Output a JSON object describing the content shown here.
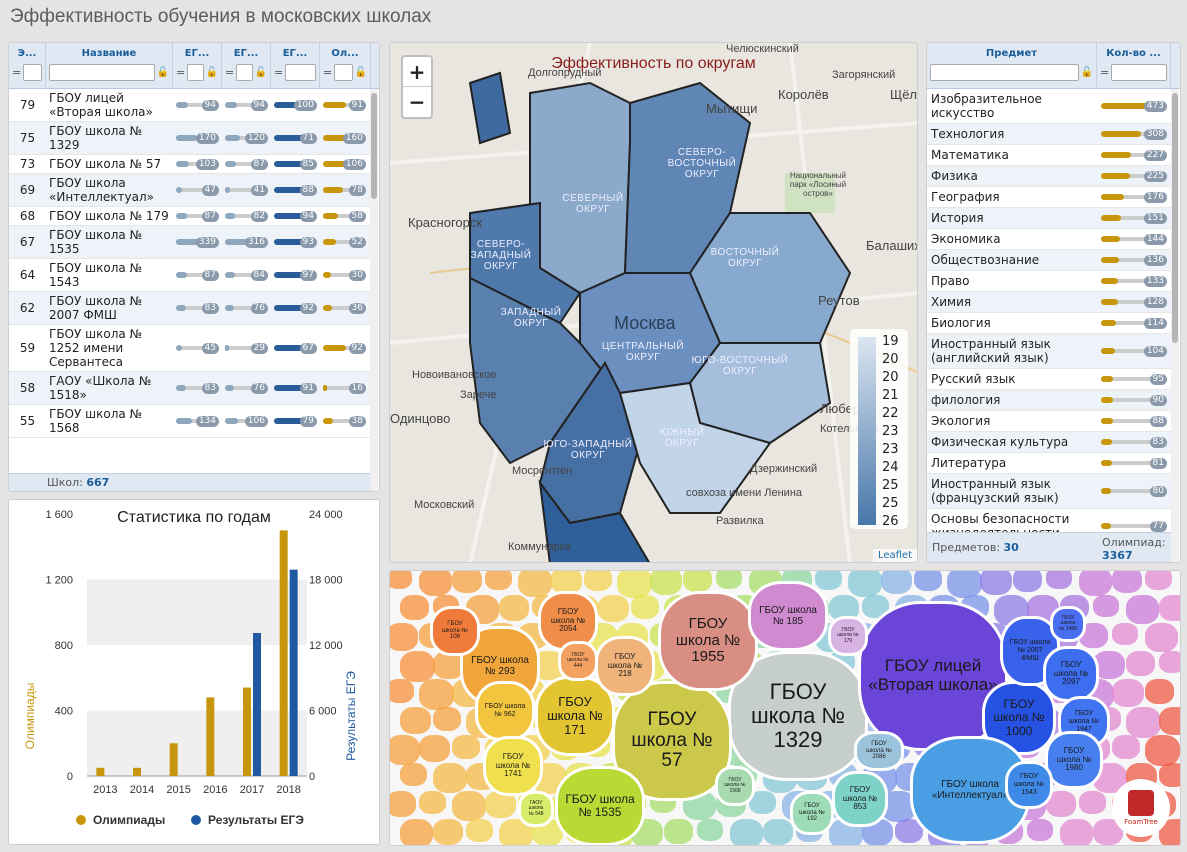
{
  "page": {
    "title": "Эффективность обучения в московских школах"
  },
  "schools": {
    "columns": [
      {
        "label": "Э...",
        "op": "="
      },
      {
        "label": "Название",
        "op": ""
      },
      {
        "label": "ЕГ...",
        "op": "="
      },
      {
        "label": "ЕГ...",
        "op": "="
      },
      {
        "label": "ЕГ...",
        "op": "="
      },
      {
        "label": "Ол...",
        "op": "="
      }
    ],
    "rows": [
      {
        "eff": "79",
        "name": "ГБОУ лицей «Вторая школа»",
        "v1": "94",
        "v2": "94",
        "v3": "100",
        "v4": "91"
      },
      {
        "eff": "75",
        "name": "ГБОУ школа № 1329",
        "v1": "170",
        "v2": "120",
        "v3": "71",
        "v4": "160"
      },
      {
        "eff": "73",
        "name": "ГБОУ школа № 57",
        "v1": "103",
        "v2": "87",
        "v3": "85",
        "v4": "106"
      },
      {
        "eff": "69",
        "name": "ГБОУ школа «Интеллектуал»",
        "v1": "47",
        "v2": "41",
        "v3": "88",
        "v4": "78"
      },
      {
        "eff": "68",
        "name": "ГБОУ школа № 179",
        "v1": "87",
        "v2": "82",
        "v3": "94",
        "v4": "58"
      },
      {
        "eff": "67",
        "name": "ГБОУ школа № 1535",
        "v1": "339",
        "v2": "316",
        "v3": "93",
        "v4": "52"
      },
      {
        "eff": "64",
        "name": "ГБОУ школа № 1543",
        "v1": "87",
        "v2": "84",
        "v3": "97",
        "v4": "30"
      },
      {
        "eff": "62",
        "name": "ГБОУ школа № 2007 ФМШ",
        "v1": "83",
        "v2": "76",
        "v3": "92",
        "v4": "36"
      },
      {
        "eff": "59",
        "name": "ГБОУ школа № 1252 имени Сервантеса",
        "v1": "45",
        "v2": "29",
        "v3": "67",
        "v4": "92"
      },
      {
        "eff": "58",
        "name": "ГАОУ «Школа № 1518»",
        "v1": "83",
        "v2": "76",
        "v3": "91",
        "v4": "16"
      },
      {
        "eff": "55",
        "name": "ГБОУ школа № 1568",
        "v1": "134",
        "v2": "106",
        "v3": "79",
        "v4": "38"
      }
    ],
    "footer_label": "Школ:",
    "footer_count": "667"
  },
  "chart_data": {
    "type": "bar",
    "title": "Статистика по годам",
    "categories": [
      "2013",
      "2014",
      "2015",
      "2016",
      "2017",
      "2018"
    ],
    "series": [
      {
        "name": "Олимпиады",
        "axis": "left",
        "color": "#c8960c",
        "values": [
          50,
          50,
          200,
          480,
          540,
          1500
        ]
      },
      {
        "name": "Результаты ЕГЭ",
        "axis": "right",
        "color": "#1f5aa0",
        "values": [
          null,
          null,
          null,
          null,
          13100,
          18900
        ]
      }
    ],
    "y_left": {
      "label": "Олимпиады",
      "ticks": [
        "0",
        "400",
        "800",
        "1 200",
        "1 600"
      ],
      "max": 1600
    },
    "y_right": {
      "label": "Результаты ЕГЭ",
      "ticks": [
        "0",
        "6 000",
        "12 000",
        "18 000",
        "24 000"
      ],
      "max": 24000
    },
    "legend_position": "bottom"
  },
  "map": {
    "title": "Эффективность по округам",
    "zoom_in": "+",
    "zoom_out": "−",
    "attribution": "Leaflet",
    "legend_values": [
      "19",
      "20",
      "20",
      "21",
      "22",
      "23",
      "23",
      "24",
      "25",
      "25",
      "26"
    ],
    "places": [
      "Долгопрудный",
      "Челюскинский",
      "Загорянский",
      "Мытищи",
      "Королёв",
      "Щёлково",
      "Красногорск",
      "Балашиха",
      "Реутов",
      "Москва",
      "Новоивановское",
      "Зарече",
      "Одинцово",
      "Люберцы",
      "Котельники",
      "Дзержинский",
      "Мосрентген",
      "Московский",
      "совхоза имени Ленина",
      "Развилка",
      "Коммунарка",
      "Национальный парк «Лосиный остров»"
    ],
    "districts": [
      "СЕВЕРНЫЙ ОКРУГ",
      "СЕВЕРО-ВОСТОЧНЫЙ ОКРУГ",
      "СЕВЕРО-ЗАПАДНЫЙ ОКРУГ",
      "ВОСТОЧНЫЙ ОКРУГ",
      "ЗАПАДНЫЙ ОКРУГ",
      "ЦЕНТРАЛЬНЫЙ ОКРУГ",
      "ЮГО-ВОСТОЧНЫЙ ОКРУГ",
      "ЮГО-ЗАПАДНЫЙ ОКРУГ",
      "ЮЖНЫЙ ОКРУГ"
    ]
  },
  "subjects": {
    "columns": [
      {
        "label": "Предмет"
      },
      {
        "label": "Кол-во ..."
      }
    ],
    "rows": [
      {
        "name": "Изобразительное искусство",
        "count": "473"
      },
      {
        "name": "Технология",
        "count": "308"
      },
      {
        "name": "Математика",
        "count": "227"
      },
      {
        "name": "Физика",
        "count": "225"
      },
      {
        "name": "География",
        "count": "176"
      },
      {
        "name": "История",
        "count": "151"
      },
      {
        "name": "Экономика",
        "count": "144"
      },
      {
        "name": "Обществознание",
        "count": "136"
      },
      {
        "name": "Право",
        "count": "133"
      },
      {
        "name": "Химия",
        "count": "128"
      },
      {
        "name": "Биология",
        "count": "114"
      },
      {
        "name": "Иностранный язык (английский язык)",
        "count": "104"
      },
      {
        "name": "Русский язык",
        "count": "95"
      },
      {
        "name": "филология",
        "count": "90"
      },
      {
        "name": "Экология",
        "count": "88"
      },
      {
        "name": "Физическая культура",
        "count": "83"
      },
      {
        "name": "Литература",
        "count": "81"
      },
      {
        "name": "Иностранный язык (французский язык)",
        "count": "80"
      },
      {
        "name": "Основы безопасности жизнедеятельности",
        "count": "77"
      }
    ],
    "footer_subjects_label": "Предметов:",
    "footer_subjects_count": "30",
    "footer_olymp_label": "Олимпиад:",
    "footer_olymp_count": "3367"
  },
  "foam": {
    "cells": [
      {
        "label": "ГБОУ школа № 1329",
        "color": "#c7cfcc"
      },
      {
        "label": "ГБОУ лицей «Вторая школа»",
        "color": "#6b45d8"
      },
      {
        "label": "ГБОУ школа № 57",
        "color": "#ccc84a"
      },
      {
        "label": "ГБОУ школа № 1955",
        "color": "#d98e83"
      },
      {
        "label": "ГБОУ школа № 171",
        "color": "#e3c532"
      },
      {
        "label": "ГБОУ школа № 1000",
        "color": "#2552e3"
      },
      {
        "label": "ГБОУ школа «Интеллектуал»",
        "color": "#4a9ee3"
      },
      {
        "label": "ГБОУ школа № 1535",
        "color": "#b9d934"
      },
      {
        "label": "ГБОУ школа № 293",
        "color": "#f0a63b"
      },
      {
        "label": "ГБОУ школа № 185",
        "color": "#d08ad0"
      },
      {
        "label": "ГБОУ школа № 2054",
        "color": "#f08d48"
      },
      {
        "label": "ГБОУ школа № 962",
        "color": "#f3c53f"
      },
      {
        "label": "ГБОУ школа № 1741",
        "color": "#f1e04e"
      },
      {
        "label": "ГБОУ школа № 218",
        "color": "#f0b37a"
      },
      {
        "label": "ГБОУ школа № 2007 ФМШ",
        "color": "#3862ea"
      },
      {
        "label": "ГБОУ школа № 2097",
        "color": "#3d6ef0"
      },
      {
        "label": "ГБОУ школа № 1947",
        "color": "#3f73f0"
      },
      {
        "label": "ГБОУ школа № 1980",
        "color": "#4780ee"
      },
      {
        "label": "ГБОУ школа № 1543",
        "color": "#3f8ae8"
      },
      {
        "label": "ГБОУ школа № 853",
        "color": "#7ed3c8"
      },
      {
        "label": "ГБОУ школа № 2086",
        "color": "#9cc3dc"
      },
      {
        "label": "ГБОУ школа № 109",
        "color": "#f07a3a"
      },
      {
        "label": "ГБОУ школа № 444",
        "color": "#f3a060"
      },
      {
        "label": "ГБОУ школа № 179",
        "color": "#d9b3e3"
      },
      {
        "label": "ГБОУ школа № 1468",
        "color": "#4a6ef0"
      },
      {
        "label": "ГБОУ школа № 1568",
        "color": "#a8dcb0"
      },
      {
        "label": "ГБОУ школа № 192",
        "color": "#9edcb8"
      },
      {
        "label": "ГАОУ школа № 548",
        "color": "#d8ec6a"
      }
    ],
    "logo_label": "FoamTree"
  }
}
